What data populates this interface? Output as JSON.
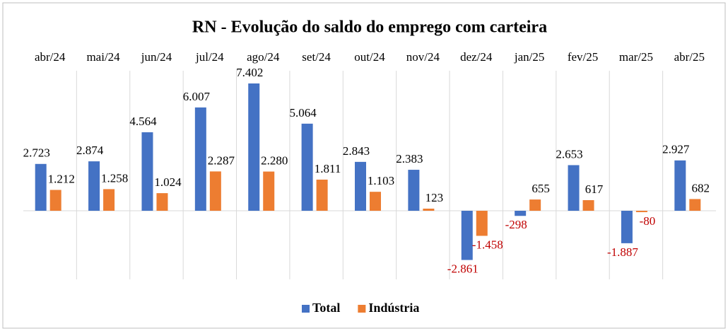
{
  "chart_data": {
    "type": "bar",
    "title": "RN - Evolução do saldo do emprego com carteira",
    "categories": [
      "abr/24",
      "mai/24",
      "jun/24",
      "jul/24",
      "ago/24",
      "set/24",
      "out/24",
      "nov/24",
      "dez/24",
      "jan/25",
      "fev/25",
      "mar/25",
      "abr/25"
    ],
    "series": [
      {
        "name": "Total",
        "color": "#4472c4",
        "values": [
          2723,
          2874,
          4564,
          6007,
          7402,
          5064,
          2843,
          2383,
          -2861,
          -298,
          2653,
          -1887,
          2927
        ],
        "value_labels": [
          "2.723",
          "2.874",
          "4.564",
          "6.007",
          "7.402",
          "5.064",
          "2.843",
          "2.383",
          "-2.861",
          "-298",
          "2.653",
          "-1.887",
          "2.927"
        ]
      },
      {
        "name": "Indústria",
        "color": "#ed7d31",
        "values": [
          1212,
          1258,
          1024,
          2287,
          2280,
          1811,
          1103,
          123,
          -1458,
          655,
          617,
          -80,
          682
        ],
        "value_labels": [
          "1.212",
          "1.258",
          "1.024",
          "2.287",
          "2.280",
          "1.811",
          "1.103",
          "123",
          "-1.458",
          "655",
          "617",
          "-80",
          "682"
        ]
      }
    ],
    "negative_label_color": "#c00000",
    "legend": "bottom"
  }
}
